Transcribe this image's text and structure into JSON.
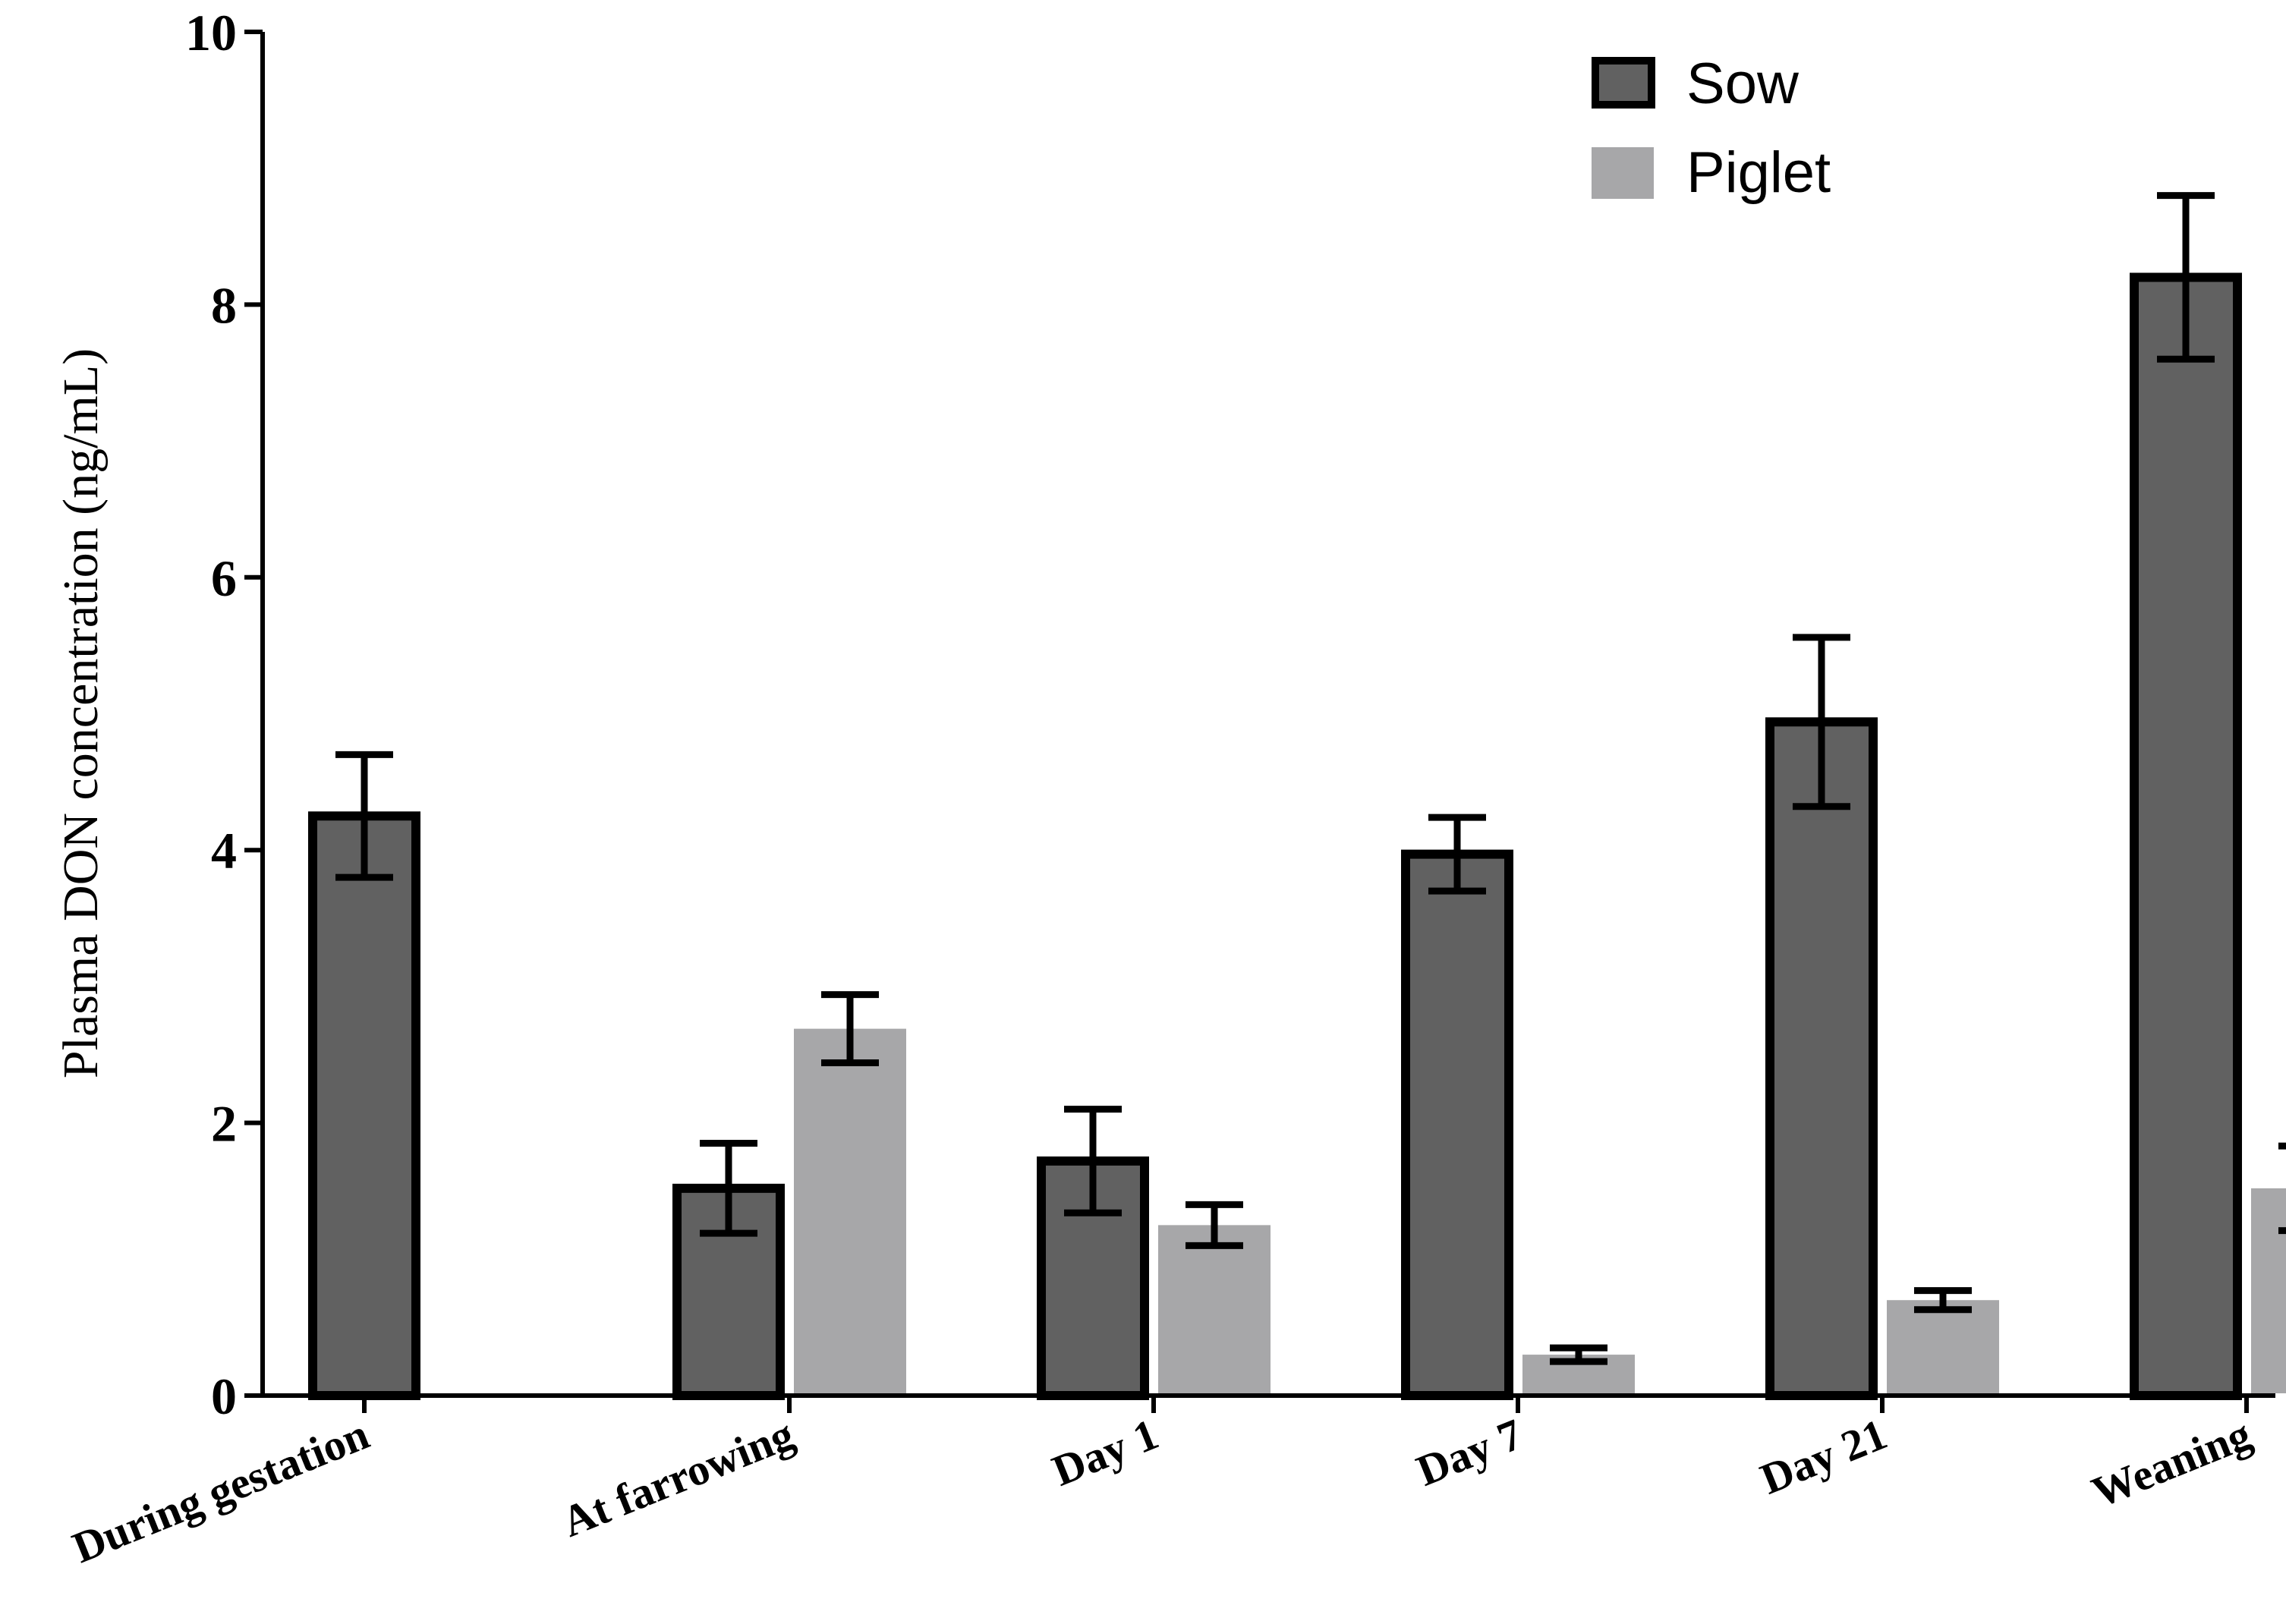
{
  "chart_data": {
    "type": "bar",
    "title": "",
    "xlabel": "",
    "ylabel": "Plasma DON concentration (ng/mL)",
    "ylim": [
      0,
      10
    ],
    "yticks": [
      0,
      2,
      4,
      6,
      8,
      10
    ],
    "grid": false,
    "legend_position": "top-right",
    "categories": [
      "During gestation",
      "At farrowing",
      "Day 1",
      "Day 7",
      "Day 21",
      "Weaning"
    ],
    "series": [
      {
        "name": "Sow",
        "color": "#616161",
        "outlined": true,
        "values": [
          4.25,
          1.52,
          1.72,
          3.97,
          4.94,
          8.2
        ],
        "errors": [
          0.45,
          0.33,
          0.38,
          0.27,
          0.62,
          0.6
        ]
      },
      {
        "name": "Piglet",
        "color": "#a7a7a9",
        "outlined": false,
        "values": [
          null,
          2.69,
          1.25,
          0.3,
          0.7,
          1.52
        ],
        "errors": [
          null,
          0.25,
          0.15,
          0.05,
          0.07,
          0.31
        ]
      }
    ]
  }
}
